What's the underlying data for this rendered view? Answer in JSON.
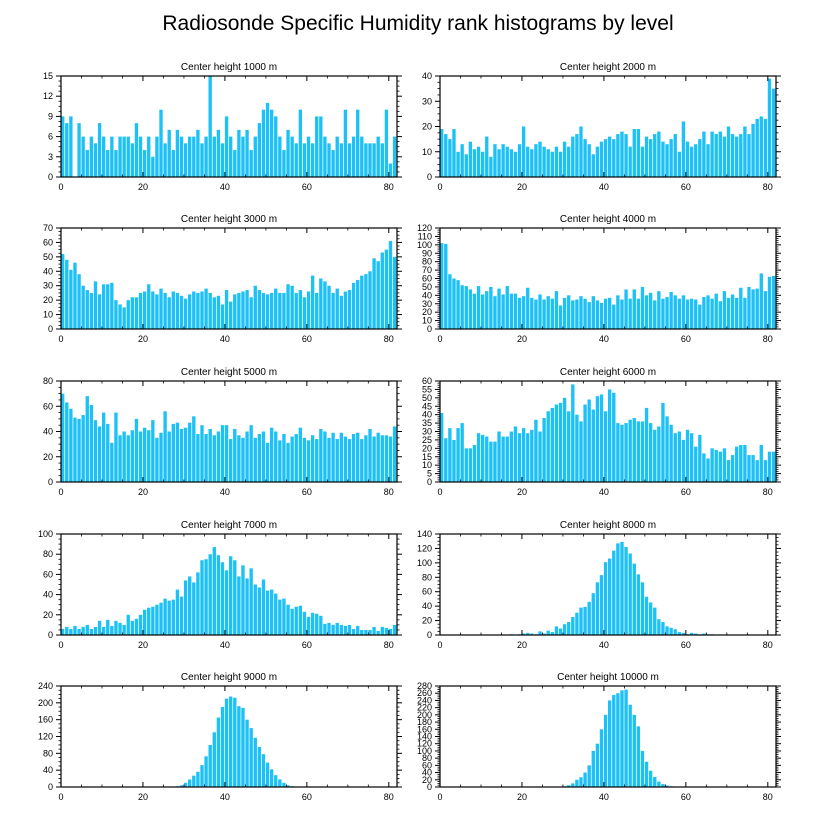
{
  "figure": {
    "title": "Radiosonde Specific Humidity rank histograms by level",
    "bar_color": "#1ec1f5",
    "xticks": [
      0,
      20,
      40,
      60,
      80
    ]
  },
  "chart_data": [
    {
      "type": "bar",
      "title": "Center height 1000 m",
      "xlim": [
        0,
        82
      ],
      "ylim": [
        0,
        15
      ],
      "yticks": [
        0,
        3,
        6,
        9,
        12,
        15
      ],
      "values": [
        9,
        8,
        9,
        0,
        8,
        6,
        4,
        6,
        5,
        8,
        6,
        4,
        6,
        4,
        6,
        6,
        6,
        5,
        8,
        6,
        4,
        6,
        3,
        6,
        10,
        5,
        7,
        4,
        7,
        6,
        5,
        6,
        6,
        7,
        5,
        6,
        15,
        6,
        7,
        5,
        9,
        6,
        4,
        7,
        6,
        7,
        4,
        6,
        8,
        10,
        11,
        10,
        9,
        6,
        4,
        7,
        6,
        5,
        10,
        5,
        6,
        5,
        9,
        9,
        6,
        5,
        4,
        6,
        5,
        10,
        5,
        6,
        10,
        6,
        5,
        5,
        5,
        6,
        5,
        10,
        2,
        6
      ]
    },
    {
      "type": "bar",
      "title": "Center height 2000 m",
      "xlim": [
        0,
        82
      ],
      "ylim": [
        0,
        40
      ],
      "yticks": [
        0,
        10,
        20,
        30,
        40
      ],
      "values": [
        19,
        17,
        15,
        19,
        10,
        13,
        9,
        14,
        11,
        12,
        10,
        16,
        8,
        13,
        11,
        13,
        12,
        11,
        10,
        13,
        20,
        12,
        11,
        13,
        14,
        12,
        11,
        10,
        12,
        10,
        14,
        12,
        16,
        17,
        20,
        15,
        13,
        9,
        12,
        14,
        15,
        16,
        15,
        17,
        18,
        17,
        12,
        19,
        19,
        12,
        16,
        15,
        17,
        18,
        14,
        13,
        15,
        17,
        10,
        22,
        14,
        12,
        13,
        15,
        18,
        13,
        18,
        17,
        18,
        16,
        20,
        17,
        16,
        17,
        20,
        17,
        21,
        23,
        24,
        23,
        39,
        35
      ]
    },
    {
      "type": "bar",
      "title": "Center height 3000 m",
      "xlim": [
        0,
        82
      ],
      "ylim": [
        0,
        70
      ],
      "yticks": [
        0,
        10,
        20,
        30,
        40,
        50,
        60,
        70
      ],
      "values": [
        52,
        48,
        41,
        46,
        38,
        30,
        27,
        25,
        33,
        24,
        31,
        31,
        32,
        20,
        17,
        15,
        20,
        22,
        22,
        25,
        26,
        31,
        26,
        24,
        28,
        25,
        22,
        26,
        25,
        23,
        21,
        24,
        26,
        25,
        26,
        28,
        25,
        22,
        23,
        17,
        27,
        19,
        24,
        25,
        26,
        27,
        22,
        30,
        27,
        25,
        24,
        25,
        28,
        25,
        25,
        31,
        30,
        25,
        27,
        22,
        26,
        37,
        25,
        35,
        33,
        30,
        25,
        28,
        23,
        26,
        27,
        32,
        34,
        37,
        38,
        40,
        49,
        47,
        53,
        55,
        61,
        50
      ]
    },
    {
      "type": "bar",
      "title": "Center height 4000 m",
      "xlim": [
        0,
        82
      ],
      "ylim": [
        0,
        120
      ],
      "yticks": [
        0,
        10,
        20,
        30,
        40,
        50,
        60,
        70,
        80,
        90,
        100,
        110,
        120
      ],
      "values": [
        102,
        101,
        65,
        60,
        58,
        52,
        51,
        47,
        42,
        51,
        41,
        45,
        50,
        39,
        48,
        41,
        51,
        42,
        42,
        37,
        39,
        49,
        37,
        35,
        41,
        35,
        39,
        36,
        45,
        28,
        37,
        40,
        34,
        35,
        39,
        36,
        32,
        39,
        34,
        31,
        36,
        37,
        29,
        40,
        35,
        47,
        36,
        47,
        36,
        50,
        40,
        43,
        34,
        45,
        36,
        38,
        44,
        40,
        36,
        40,
        35,
        36,
        35,
        29,
        38,
        40,
        36,
        42,
        33,
        45,
        37,
        41,
        37,
        49,
        37,
        50,
        47,
        48,
        66,
        45,
        62,
        63
      ]
    },
    {
      "type": "bar",
      "title": "Center height 5000 m",
      "xlim": [
        0,
        82
      ],
      "ylim": [
        0,
        80
      ],
      "yticks": [
        0,
        20,
        40,
        60,
        80
      ],
      "values": [
        70,
        63,
        58,
        51,
        50,
        53,
        68,
        61,
        49,
        44,
        55,
        46,
        31,
        55,
        37,
        40,
        37,
        41,
        50,
        40,
        43,
        41,
        49,
        35,
        39,
        56,
        40,
        46,
        47,
        42,
        43,
        47,
        52,
        38,
        45,
        38,
        42,
        37,
        40,
        45,
        45,
        34,
        42,
        37,
        35,
        40,
        45,
        35,
        38,
        40,
        31,
        43,
        40,
        33,
        38,
        31,
        36,
        38,
        43,
        35,
        33,
        37,
        34,
        42,
        40,
        35,
        39,
        34,
        39,
        36,
        34,
        38,
        39,
        34,
        37,
        42,
        36,
        39,
        37,
        37,
        36,
        44
      ]
    },
    {
      "type": "bar",
      "title": "Center height 6000 m",
      "xlim": [
        0,
        82
      ],
      "ylim": [
        0,
        60
      ],
      "yticks": [
        0,
        5,
        10,
        15,
        20,
        25,
        30,
        35,
        40,
        45,
        50,
        55,
        60
      ],
      "values": [
        41,
        26,
        32,
        25,
        32,
        35,
        20,
        20,
        22,
        29,
        28,
        27,
        24,
        24,
        30,
        27,
        27,
        30,
        33,
        29,
        32,
        29,
        31,
        37,
        30,
        38,
        42,
        44,
        46,
        47,
        50,
        42,
        58,
        40,
        36,
        46,
        49,
        43,
        51,
        52,
        42,
        55,
        53,
        35,
        34,
        35,
        37,
        38,
        36,
        36,
        44,
        35,
        31,
        33,
        47,
        39,
        34,
        29,
        30,
        25,
        31,
        29,
        21,
        28,
        17,
        14,
        20,
        19,
        18,
        20,
        13,
        16,
        21,
        22,
        22,
        16,
        16,
        13,
        22,
        13,
        18,
        18
      ]
    },
    {
      "type": "bar",
      "title": "Center height 7000 m",
      "xlim": [
        0,
        82
      ],
      "ylim": [
        0,
        100
      ],
      "yticks": [
        0,
        20,
        40,
        60,
        80,
        100
      ],
      "values": [
        6,
        8,
        6,
        9,
        6,
        8,
        10,
        6,
        8,
        14,
        8,
        15,
        9,
        14,
        12,
        10,
        20,
        14,
        16,
        20,
        25,
        27,
        28,
        30,
        32,
        36,
        34,
        35,
        45,
        38,
        54,
        58,
        52,
        62,
        74,
        75,
        80,
        87,
        79,
        72,
        64,
        78,
        74,
        58,
        69,
        56,
        66,
        50,
        47,
        55,
        44,
        45,
        41,
        35,
        36,
        30,
        26,
        28,
        29,
        23,
        18,
        22,
        21,
        19,
        11,
        12,
        10,
        12,
        10,
        9,
        10,
        6,
        9,
        5,
        5,
        5,
        8,
        4,
        8,
        7,
        6,
        10
      ]
    },
    {
      "type": "bar",
      "title": "Center height 8000 m",
      "xlim": [
        0,
        82
      ],
      "ylim": [
        0,
        140
      ],
      "yticks": [
        0,
        20,
        40,
        60,
        80,
        100,
        120,
        140
      ],
      "values": [
        0,
        0,
        0,
        0,
        0,
        0,
        0,
        0,
        0,
        0,
        0,
        0,
        0,
        0,
        0,
        0,
        0,
        1,
        0,
        1,
        2,
        3,
        2,
        1,
        5,
        2,
        6,
        4,
        12,
        9,
        15,
        18,
        25,
        31,
        38,
        39,
        46,
        58,
        73,
        83,
        101,
        106,
        117,
        127,
        129,
        122,
        113,
        99,
        84,
        73,
        53,
        45,
        38,
        22,
        18,
        12,
        10,
        8,
        4,
        3,
        1,
        3,
        2,
        1,
        2,
        1,
        1,
        0,
        0,
        0,
        0,
        0,
        0,
        0,
        0,
        0,
        0,
        0,
        0,
        0,
        0,
        0
      ]
    },
    {
      "type": "bar",
      "title": "Center height 9000 m",
      "xlim": [
        0,
        82
      ],
      "ylim": [
        0,
        240
      ],
      "yticks": [
        0,
        40,
        80,
        120,
        160,
        200,
        240
      ],
      "values": [
        0,
        0,
        0,
        0,
        0,
        0,
        0,
        0,
        0,
        0,
        0,
        0,
        0,
        0,
        0,
        0,
        0,
        0,
        0,
        0,
        0,
        0,
        0,
        0,
        0,
        0,
        0,
        1,
        2,
        4,
        10,
        18,
        27,
        36,
        52,
        73,
        100,
        130,
        165,
        190,
        210,
        215,
        212,
        192,
        188,
        160,
        140,
        117,
        95,
        78,
        58,
        42,
        28,
        18,
        10,
        4,
        2,
        1,
        1,
        0,
        0,
        0,
        0,
        0,
        0,
        0,
        0,
        0,
        0,
        0,
        0,
        0,
        0,
        0,
        0,
        0,
        0,
        0,
        0,
        0,
        0,
        0
      ]
    },
    {
      "type": "bar",
      "title": "Center height 10000 m",
      "xlim": [
        0,
        82
      ],
      "ylim": [
        0,
        280
      ],
      "yticks": [
        0,
        20,
        40,
        60,
        80,
        100,
        120,
        140,
        160,
        180,
        200,
        220,
        240,
        260,
        280
      ],
      "values": [
        0,
        0,
        0,
        0,
        0,
        0,
        0,
        0,
        0,
        0,
        0,
        0,
        0,
        0,
        0,
        0,
        0,
        0,
        0,
        0,
        0,
        0,
        0,
        0,
        0,
        0,
        0,
        0,
        0,
        1,
        2,
        5,
        10,
        20,
        27,
        40,
        60,
        100,
        120,
        160,
        200,
        240,
        255,
        260,
        268,
        270,
        228,
        200,
        168,
        100,
        70,
        45,
        28,
        15,
        8,
        4,
        2,
        1,
        1,
        0,
        0,
        0,
        0,
        0,
        0,
        0,
        0,
        0,
        0,
        0,
        0,
        0,
        0,
        0,
        0,
        0,
        0,
        0,
        0,
        0,
        0,
        0
      ]
    }
  ]
}
